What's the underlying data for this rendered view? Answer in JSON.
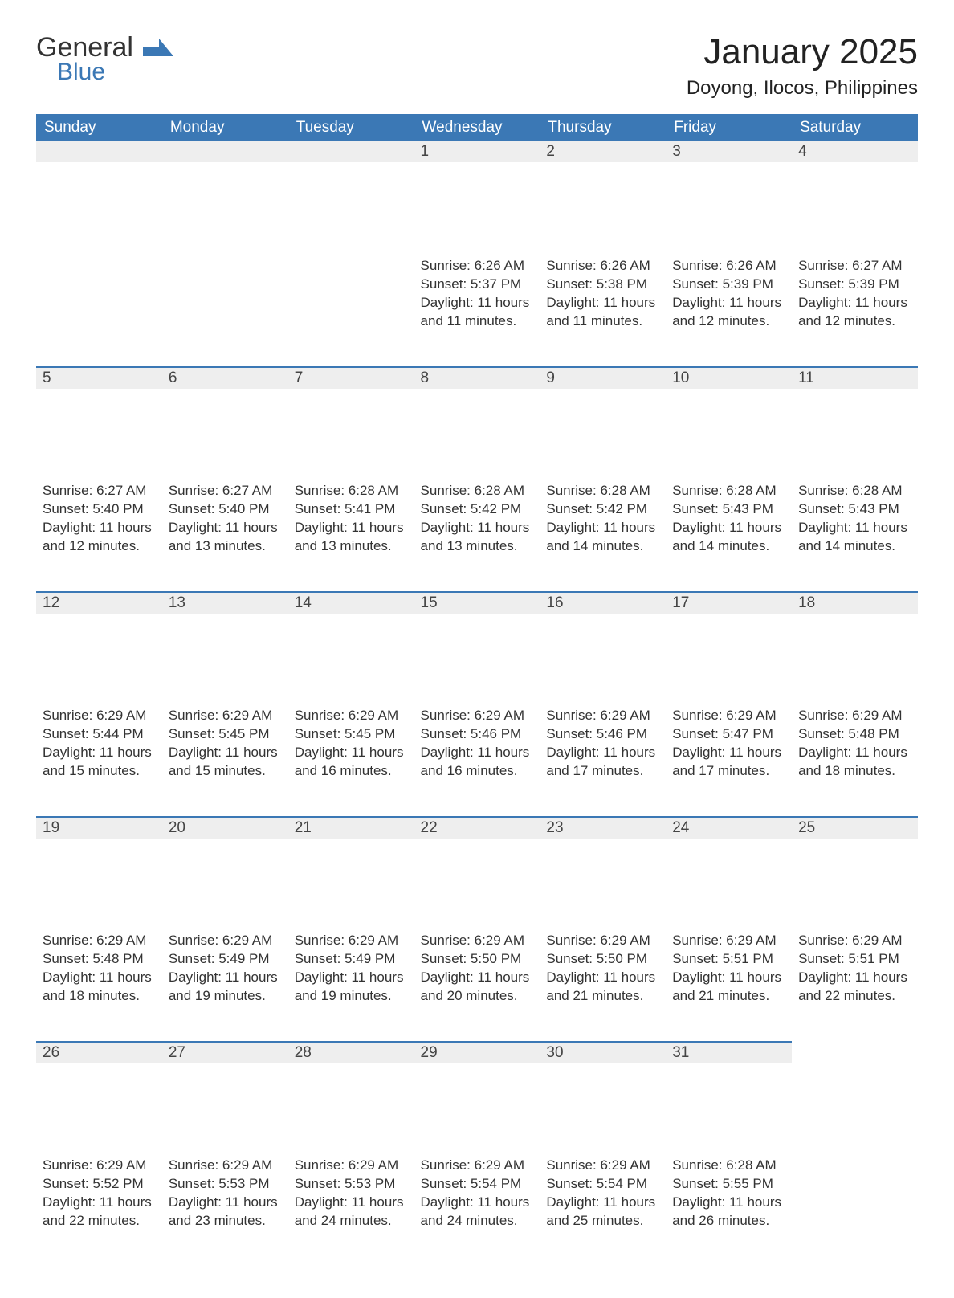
{
  "logo": {
    "general": "General",
    "blue": "Blue"
  },
  "title": {
    "month": "January 2025",
    "location": "Doyong, Ilocos, Philippines"
  },
  "colors": {
    "header_bg": "#3b78b5",
    "header_text": "#ffffff",
    "daynum_bg": "#eeeeee",
    "border": "#3b78b5",
    "text": "#333333"
  },
  "weekdays": [
    "Sunday",
    "Monday",
    "Tuesday",
    "Wednesday",
    "Thursday",
    "Friday",
    "Saturday"
  ],
  "weeks": [
    [
      null,
      null,
      null,
      {
        "n": "1",
        "sunrise": "Sunrise: 6:26 AM",
        "sunset": "Sunset: 5:37 PM",
        "day1": "Daylight: 11 hours",
        "day2": "and 11 minutes."
      },
      {
        "n": "2",
        "sunrise": "Sunrise: 6:26 AM",
        "sunset": "Sunset: 5:38 PM",
        "day1": "Daylight: 11 hours",
        "day2": "and 11 minutes."
      },
      {
        "n": "3",
        "sunrise": "Sunrise: 6:26 AM",
        "sunset": "Sunset: 5:39 PM",
        "day1": "Daylight: 11 hours",
        "day2": "and 12 minutes."
      },
      {
        "n": "4",
        "sunrise": "Sunrise: 6:27 AM",
        "sunset": "Sunset: 5:39 PM",
        "day1": "Daylight: 11 hours",
        "day2": "and 12 minutes."
      }
    ],
    [
      {
        "n": "5",
        "sunrise": "Sunrise: 6:27 AM",
        "sunset": "Sunset: 5:40 PM",
        "day1": "Daylight: 11 hours",
        "day2": "and 12 minutes."
      },
      {
        "n": "6",
        "sunrise": "Sunrise: 6:27 AM",
        "sunset": "Sunset: 5:40 PM",
        "day1": "Daylight: 11 hours",
        "day2": "and 13 minutes."
      },
      {
        "n": "7",
        "sunrise": "Sunrise: 6:28 AM",
        "sunset": "Sunset: 5:41 PM",
        "day1": "Daylight: 11 hours",
        "day2": "and 13 minutes."
      },
      {
        "n": "8",
        "sunrise": "Sunrise: 6:28 AM",
        "sunset": "Sunset: 5:42 PM",
        "day1": "Daylight: 11 hours",
        "day2": "and 13 minutes."
      },
      {
        "n": "9",
        "sunrise": "Sunrise: 6:28 AM",
        "sunset": "Sunset: 5:42 PM",
        "day1": "Daylight: 11 hours",
        "day2": "and 14 minutes."
      },
      {
        "n": "10",
        "sunrise": "Sunrise: 6:28 AM",
        "sunset": "Sunset: 5:43 PM",
        "day1": "Daylight: 11 hours",
        "day2": "and 14 minutes."
      },
      {
        "n": "11",
        "sunrise": "Sunrise: 6:28 AM",
        "sunset": "Sunset: 5:43 PM",
        "day1": "Daylight: 11 hours",
        "day2": "and 14 minutes."
      }
    ],
    [
      {
        "n": "12",
        "sunrise": "Sunrise: 6:29 AM",
        "sunset": "Sunset: 5:44 PM",
        "day1": "Daylight: 11 hours",
        "day2": "and 15 minutes."
      },
      {
        "n": "13",
        "sunrise": "Sunrise: 6:29 AM",
        "sunset": "Sunset: 5:45 PM",
        "day1": "Daylight: 11 hours",
        "day2": "and 15 minutes."
      },
      {
        "n": "14",
        "sunrise": "Sunrise: 6:29 AM",
        "sunset": "Sunset: 5:45 PM",
        "day1": "Daylight: 11 hours",
        "day2": "and 16 minutes."
      },
      {
        "n": "15",
        "sunrise": "Sunrise: 6:29 AM",
        "sunset": "Sunset: 5:46 PM",
        "day1": "Daylight: 11 hours",
        "day2": "and 16 minutes."
      },
      {
        "n": "16",
        "sunrise": "Sunrise: 6:29 AM",
        "sunset": "Sunset: 5:46 PM",
        "day1": "Daylight: 11 hours",
        "day2": "and 17 minutes."
      },
      {
        "n": "17",
        "sunrise": "Sunrise: 6:29 AM",
        "sunset": "Sunset: 5:47 PM",
        "day1": "Daylight: 11 hours",
        "day2": "and 17 minutes."
      },
      {
        "n": "18",
        "sunrise": "Sunrise: 6:29 AM",
        "sunset": "Sunset: 5:48 PM",
        "day1": "Daylight: 11 hours",
        "day2": "and 18 minutes."
      }
    ],
    [
      {
        "n": "19",
        "sunrise": "Sunrise: 6:29 AM",
        "sunset": "Sunset: 5:48 PM",
        "day1": "Daylight: 11 hours",
        "day2": "and 18 minutes."
      },
      {
        "n": "20",
        "sunrise": "Sunrise: 6:29 AM",
        "sunset": "Sunset: 5:49 PM",
        "day1": "Daylight: 11 hours",
        "day2": "and 19 minutes."
      },
      {
        "n": "21",
        "sunrise": "Sunrise: 6:29 AM",
        "sunset": "Sunset: 5:49 PM",
        "day1": "Daylight: 11 hours",
        "day2": "and 19 minutes."
      },
      {
        "n": "22",
        "sunrise": "Sunrise: 6:29 AM",
        "sunset": "Sunset: 5:50 PM",
        "day1": "Daylight: 11 hours",
        "day2": "and 20 minutes."
      },
      {
        "n": "23",
        "sunrise": "Sunrise: 6:29 AM",
        "sunset": "Sunset: 5:50 PM",
        "day1": "Daylight: 11 hours",
        "day2": "and 21 minutes."
      },
      {
        "n": "24",
        "sunrise": "Sunrise: 6:29 AM",
        "sunset": "Sunset: 5:51 PM",
        "day1": "Daylight: 11 hours",
        "day2": "and 21 minutes."
      },
      {
        "n": "25",
        "sunrise": "Sunrise: 6:29 AM",
        "sunset": "Sunset: 5:51 PM",
        "day1": "Daylight: 11 hours",
        "day2": "and 22 minutes."
      }
    ],
    [
      {
        "n": "26",
        "sunrise": "Sunrise: 6:29 AM",
        "sunset": "Sunset: 5:52 PM",
        "day1": "Daylight: 11 hours",
        "day2": "and 22 minutes."
      },
      {
        "n": "27",
        "sunrise": "Sunrise: 6:29 AM",
        "sunset": "Sunset: 5:53 PM",
        "day1": "Daylight: 11 hours",
        "day2": "and 23 minutes."
      },
      {
        "n": "28",
        "sunrise": "Sunrise: 6:29 AM",
        "sunset": "Sunset: 5:53 PM",
        "day1": "Daylight: 11 hours",
        "day2": "and 24 minutes."
      },
      {
        "n": "29",
        "sunrise": "Sunrise: 6:29 AM",
        "sunset": "Sunset: 5:54 PM",
        "day1": "Daylight: 11 hours",
        "day2": "and 24 minutes."
      },
      {
        "n": "30",
        "sunrise": "Sunrise: 6:29 AM",
        "sunset": "Sunset: 5:54 PM",
        "day1": "Daylight: 11 hours",
        "day2": "and 25 minutes."
      },
      {
        "n": "31",
        "sunrise": "Sunrise: 6:28 AM",
        "sunset": "Sunset: 5:55 PM",
        "day1": "Daylight: 11 hours",
        "day2": "and 26 minutes."
      },
      null
    ]
  ]
}
